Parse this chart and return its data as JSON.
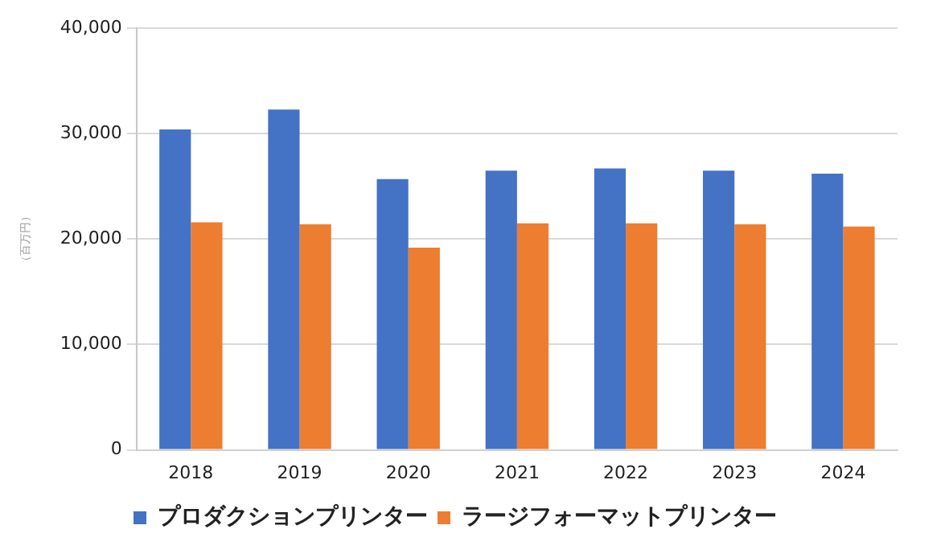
{
  "chart_data": {
    "type": "bar",
    "ylabel": "（百万円）",
    "categories": [
      "2018",
      "2019",
      "2020",
      "2021",
      "2022",
      "2023",
      "2024"
    ],
    "series": [
      {
        "name": "プロダクションプリンター",
        "color": "#4472c4",
        "values": [
          30400,
          32300,
          25700,
          26500,
          26700,
          26500,
          26200
        ]
      },
      {
        "name": "ラージフォーマットプリンター",
        "color": "#ed7d31",
        "values": [
          21600,
          21400,
          19200,
          21500,
          21500,
          21400,
          21200
        ]
      }
    ],
    "ylim": [
      0,
      40000
    ],
    "yticks": [
      {
        "value": 0,
        "label": "0"
      },
      {
        "value": 10000,
        "label": "10,000"
      },
      {
        "value": 20000,
        "label": "20,000"
      },
      {
        "value": 30000,
        "label": "30,000"
      },
      {
        "value": 40000,
        "label": "40,000"
      }
    ],
    "grid": "y",
    "legend": "bottom"
  }
}
